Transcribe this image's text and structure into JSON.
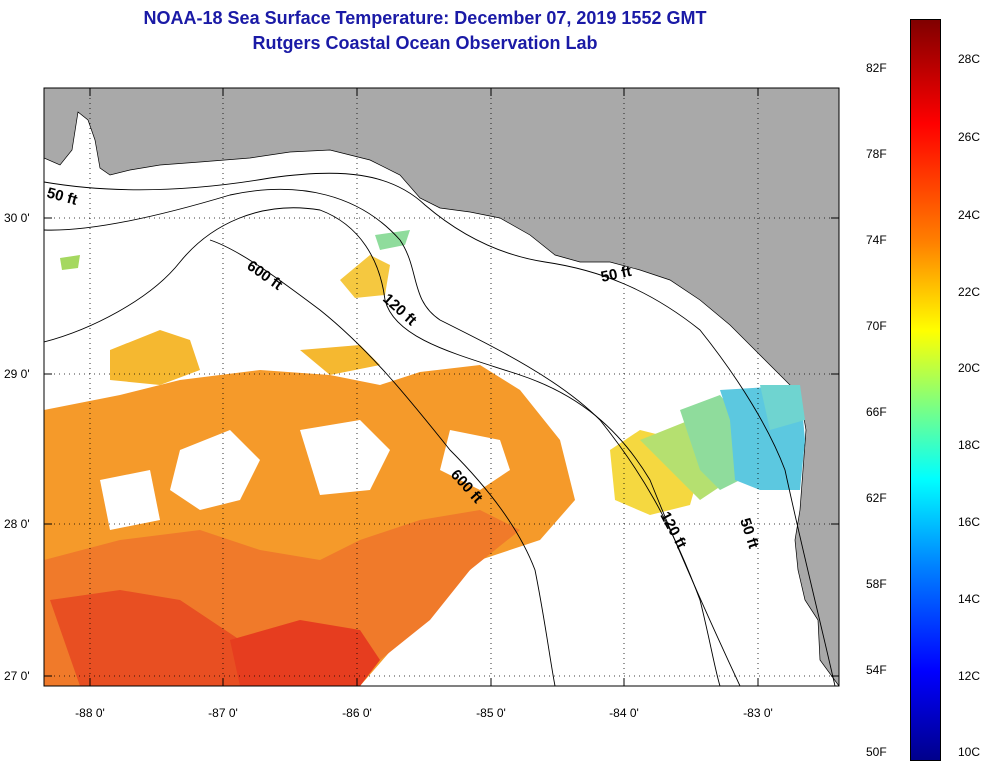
{
  "title": {
    "line1": "NOAA-18 Sea Surface Temperature:  December 07, 2019 1552 GMT",
    "line2": "Rutgers Coastal Ocean Observation Lab"
  },
  "map": {
    "lat_labels": [
      "30 0'",
      "29 0'",
      "28 0'",
      "27 0'"
    ],
    "lon_labels": [
      "-88 0'",
      "-87 0'",
      "-86 0'",
      "-85 0'",
      "-84 0'",
      "-83 0'"
    ],
    "contour_labels": [
      "50 ft",
      "600 ft",
      "120 ft",
      "50 ft",
      "600 ft",
      "120 ft",
      "50 ft"
    ],
    "colors": {
      "land": "#a9a9a9",
      "ocean_clouds": "#ffffff",
      "frame": "#000000"
    }
  },
  "colorbar": {
    "fahrenheit_labels": [
      "82F",
      "78F",
      "74F",
      "70F",
      "66F",
      "62F",
      "58F",
      "54F",
      "50F"
    ],
    "celsius_labels": [
      "28C",
      "26C",
      "24C",
      "22C",
      "20C",
      "18C",
      "16C",
      "14C",
      "12C",
      "10C"
    ],
    "range_celsius": [
      10,
      29.5
    ]
  }
}
